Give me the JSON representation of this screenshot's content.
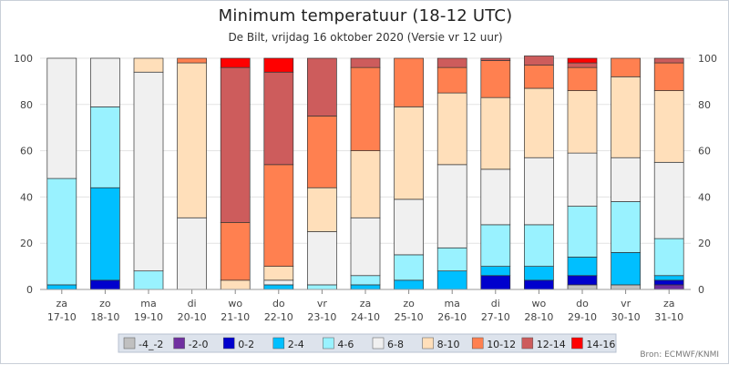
{
  "chart_data": {
    "type": "bar",
    "stacked": true,
    "title": "Minimum temperatuur (18-12 UTC)",
    "subtitle": "De Bilt, vrijdag 16 oktober 2020 (Versie vr 12 uur)",
    "source": "Bron: ECMWF/KNMI",
    "ylim": [
      0,
      100
    ],
    "yticks": [
      0,
      20,
      40,
      60,
      80,
      100
    ],
    "grid": true,
    "legend_position": "bottom",
    "categories": [
      {
        "day": "za",
        "date": "17-10"
      },
      {
        "day": "zo",
        "date": "18-10"
      },
      {
        "day": "ma",
        "date": "19-10"
      },
      {
        "day": "di",
        "date": "20-10"
      },
      {
        "day": "wo",
        "date": "21-10"
      },
      {
        "day": "do",
        "date": "22-10"
      },
      {
        "day": "vr",
        "date": "23-10"
      },
      {
        "day": "za",
        "date": "24-10"
      },
      {
        "day": "zo",
        "date": "25-10"
      },
      {
        "day": "ma",
        "date": "26-10"
      },
      {
        "day": "di",
        "date": "27-10"
      },
      {
        "day": "wo",
        "date": "28-10"
      },
      {
        "day": "do",
        "date": "29-10"
      },
      {
        "day": "vr",
        "date": "30-10"
      },
      {
        "day": "za",
        "date": "31-10"
      }
    ],
    "series": [
      {
        "name": "-4_-2",
        "color": "#c0c0c0",
        "values": [
          0,
          0,
          0,
          0,
          0,
          0,
          0,
          0,
          0,
          0,
          0,
          0,
          2,
          2,
          0
        ]
      },
      {
        "name": "-2-0",
        "color": "#7030a0",
        "values": [
          0,
          0,
          0,
          0,
          0,
          0,
          0,
          0,
          0,
          0,
          0,
          0,
          0,
          0,
          2
        ]
      },
      {
        "name": "0-2",
        "color": "#0000cd",
        "values": [
          0,
          4,
          0,
          0,
          0,
          0,
          0,
          0,
          0,
          0,
          6,
          4,
          4,
          0,
          2
        ]
      },
      {
        "name": "2-4",
        "color": "#00bfff",
        "values": [
          2,
          40,
          0,
          0,
          0,
          2,
          0,
          2,
          4,
          8,
          4,
          6,
          8,
          14,
          2
        ]
      },
      {
        "name": "4-6",
        "color": "#99f2ff",
        "values": [
          46,
          35,
          8,
          0,
          0,
          0,
          2,
          4,
          11,
          10,
          18,
          18,
          22,
          22,
          16
        ]
      },
      {
        "name": "6-8",
        "color": "#f0f0f0",
        "values": [
          52,
          21,
          86,
          31,
          0,
          2,
          23,
          25,
          24,
          36,
          24,
          29,
          23,
          19,
          33
        ]
      },
      {
        "name": "8-10",
        "color": "#ffdfba",
        "values": [
          0,
          0,
          6,
          67,
          4,
          6,
          19,
          29,
          40,
          31,
          31,
          30,
          27,
          35,
          31
        ]
      },
      {
        "name": "10-12",
        "color": "#ff8050",
        "values": [
          0,
          0,
          0,
          2,
          25,
          44,
          31,
          36,
          21,
          11,
          16,
          10,
          10,
          8,
          12
        ]
      },
      {
        "name": "12-14",
        "color": "#cd5c5c",
        "values": [
          0,
          0,
          0,
          0,
          67,
          40,
          25,
          4,
          0,
          4,
          1,
          4,
          2,
          0,
          2
        ]
      },
      {
        "name": "14-16",
        "color": "#ff0000",
        "values": [
          0,
          0,
          0,
          0,
          4,
          6,
          0,
          0,
          0,
          0,
          0,
          0,
          2,
          0,
          0
        ]
      }
    ]
  }
}
